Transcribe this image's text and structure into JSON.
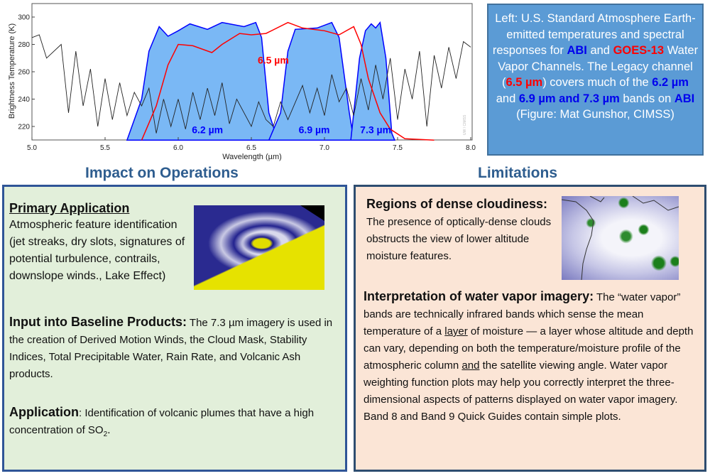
{
  "chart_data": {
    "type": "line",
    "xlabel": "Wavelength (µm)",
    "ylabel": "Brightness Temperature (K)",
    "xlim": [
      5.0,
      8.0
    ],
    "ylim": [
      210,
      305
    ],
    "x_ticks": [
      "5.0",
      "5.5",
      "6.0",
      "6.5",
      "7.0",
      "7.5",
      "8.0"
    ],
    "y_ticks": [
      "220",
      "240",
      "260",
      "280",
      "300"
    ],
    "watermark": "UW / CIMSS",
    "grid": false,
    "series": [
      {
        "name": "6.2 µm",
        "kind": "filled-band",
        "color": "#0000ff",
        "fill": "#7ab8f5",
        "x": [
          5.65,
          5.75,
          5.8,
          5.87,
          5.93,
          6.0,
          6.08,
          6.2,
          6.3,
          6.45,
          6.53,
          6.57,
          6.62,
          6.68
        ],
        "y": [
          210,
          240,
          275,
          293,
          286,
          290,
          295,
          291,
          296,
          293,
          296,
          285,
          230,
          210
        ]
      },
      {
        "name": "6.9 µm",
        "kind": "filled-band",
        "color": "#0000ff",
        "fill": "#7ab8f5",
        "x": [
          6.62,
          6.7,
          6.75,
          6.8,
          6.95,
          7.05,
          7.1,
          7.17,
          7.2
        ],
        "y": [
          210,
          230,
          275,
          291,
          292,
          296,
          285,
          230,
          210
        ]
      },
      {
        "name": "7.3 µm",
        "kind": "filled-band",
        "color": "#0000ff",
        "fill": "#7ab8f5",
        "x": [
          7.18,
          7.24,
          7.28,
          7.32,
          7.35,
          7.38,
          7.42,
          7.46,
          7.48
        ],
        "y": [
          210,
          270,
          290,
          295,
          292,
          296,
          270,
          215,
          210
        ]
      },
      {
        "name": "6.5 µm",
        "kind": "line",
        "color": "#ff0000",
        "x": [
          5.75,
          5.85,
          5.93,
          6.0,
          6.1,
          6.23,
          6.3,
          6.42,
          6.5,
          6.6,
          6.75,
          6.85,
          7.0,
          7.1,
          7.2,
          7.25,
          7.3,
          7.38,
          7.45,
          7.55,
          7.75
        ],
        "y": [
          210,
          235,
          265,
          280,
          279,
          274,
          280,
          288,
          287,
          288,
          296,
          292,
          290,
          287,
          293,
          280,
          255,
          230,
          218,
          211,
          210
        ]
      },
      {
        "kind": "line",
        "color": "#222222",
        "x": [
          5.0,
          5.05,
          5.1,
          5.2,
          5.25,
          5.3,
          5.35,
          5.4,
          5.45,
          5.5,
          5.55,
          5.6,
          5.65,
          5.7,
          5.75,
          5.8,
          5.85,
          5.9,
          5.95,
          6.0,
          6.05,
          6.1,
          6.15,
          6.2,
          6.25,
          6.3,
          6.35,
          6.4,
          6.5,
          6.55,
          6.6,
          6.65,
          6.7,
          6.75,
          6.85,
          6.9,
          6.95,
          7.0,
          7.05,
          7.1,
          7.15,
          7.2,
          7.25,
          7.3,
          7.35,
          7.4,
          7.45,
          7.5,
          7.55,
          7.6,
          7.65,
          7.7,
          7.75,
          7.8,
          7.85,
          7.9,
          7.95,
          8.0
        ],
        "y": [
          285,
          287,
          270,
          280,
          230,
          275,
          235,
          262,
          220,
          255,
          225,
          252,
          228,
          245,
          235,
          248,
          215,
          240,
          220,
          240,
          218,
          245,
          225,
          248,
          228,
          252,
          222,
          240,
          220,
          238,
          225,
          220,
          238,
          225,
          250,
          230,
          248,
          228,
          258,
          238,
          248,
          228,
          255,
          232,
          265,
          240,
          270,
          225,
          262,
          240,
          275,
          220,
          272,
          248,
          278,
          255,
          282,
          278
        ]
      }
    ],
    "annotations": [
      {
        "text": "6.5 µm",
        "color": "#ff0000",
        "x": 6.65,
        "y": 266
      },
      {
        "text": "6.2 µm",
        "color": "#0000ff",
        "x": 6.2,
        "y": 215
      },
      {
        "text": "6.9 µm",
        "color": "#0000ff",
        "x": 6.93,
        "y": 215
      },
      {
        "text": "7.3 µm",
        "color": "#0000ff",
        "x": 7.35,
        "y": 215
      }
    ]
  },
  "infobox": {
    "t1": "Left: U.S. Standard Atmosphere Earth-emitted temperatures and spectral responses for ",
    "abi1": "ABI",
    "t2": " and ",
    "goes": "GOES-13",
    "t3": " Water Vapor Channels. The Legacy channel (",
    "w65": "6.5 µm",
    "t4": ") covers much of the ",
    "w62": "6.2 µm",
    "t5": " and ",
    "w69": "6.9 µm and 7.3 µm",
    "t6": " bands on ",
    "abi2": "ABI",
    "t7": " (Figure:  Mat Gunshor, CIMSS)"
  },
  "impact": {
    "heading": "Impact on Operations",
    "primary_title": "Primary Application",
    "primary_text": "Atmospheric feature identification (jet streaks, dry slots, signatures of potential turbulence, contrails, downslope winds., Lake Effect)",
    "baseline_title": "Input into Baseline Products:",
    "baseline_text": " The 7.3 µm imagery is used in the creation of Derived Motion Winds, the Cloud Mask, Stability Indices, Total Precipitable Water, Rain Rate, and Volcanic Ash products.",
    "app_title": "Application",
    "app_text": ": Identification of volcanic plumes that have a high concentration of SO",
    "app_sub": "2",
    "app_end": "."
  },
  "limitations": {
    "heading": "Limitations",
    "dense_title": "Regions of dense cloudiness:",
    "dense_text": " The presence of optically-dense clouds obstructs the view of lower altitude moisture features.",
    "interp_title": "Interpretation of water vapor imagery:",
    "interp_t1": " The “water vapor” bands are technically infrared bands which sense the mean temperature of a ",
    "interp_layer": "layer",
    "interp_t2": " of moisture — a layer whose altitude and depth can vary, depending on both the temperature/moisture profile of the atmospheric column ",
    "interp_and": "and",
    "interp_t3": " the satellite viewing angle. Water vapor weighting function plots may help you correctly  interpret the three-dimensional aspects of patterns displayed on water vapor imagery.  Band 8 and Band 9 Quick Guides contain  simple plots."
  }
}
